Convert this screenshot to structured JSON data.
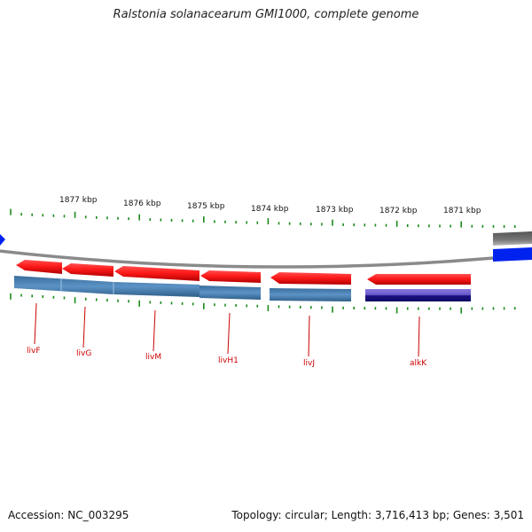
{
  "title": "Ralstonia solanacearum GMI1000, complete genome",
  "footer": {
    "accession": "Accession: NC_003295",
    "topology": "Topology: circular; Length: 3,716,413 bp; Genes: 3,501"
  },
  "map": {
    "ruler_labels": [
      {
        "text": "1877 kbp",
        "kbp": 1877
      },
      {
        "text": "1876 kbp",
        "kbp": 1876
      },
      {
        "text": "1875 kbp",
        "kbp": 1875
      },
      {
        "text": "1874 kbp",
        "kbp": 1874
      },
      {
        "text": "1873 kbp",
        "kbp": 1873
      },
      {
        "text": "1872 kbp",
        "kbp": 1872
      },
      {
        "text": "1871 kbp",
        "kbp": 1871
      }
    ],
    "genes": [
      {
        "name": "livF",
        "label_color": "#cc0000"
      },
      {
        "name": "livG",
        "label_color": "#cc0000"
      },
      {
        "name": "livM",
        "label_color": "#cc0000"
      },
      {
        "name": "livH1",
        "label_color": "#cc0000"
      },
      {
        "name": "livJ",
        "label_color": "#cc0000"
      },
      {
        "name": "alkK",
        "label_color": "#cc0000"
      }
    ],
    "colors": {
      "gene_forward": "#ff1a1a",
      "cds_reverse": "#4a7fb0",
      "cds_other": "#2a1a99",
      "backbone": "#888888",
      "ruler_tick": "#1a8a1a",
      "neighbor_blue": "#0022ee",
      "neighbor_gray": "#666666"
    }
  }
}
